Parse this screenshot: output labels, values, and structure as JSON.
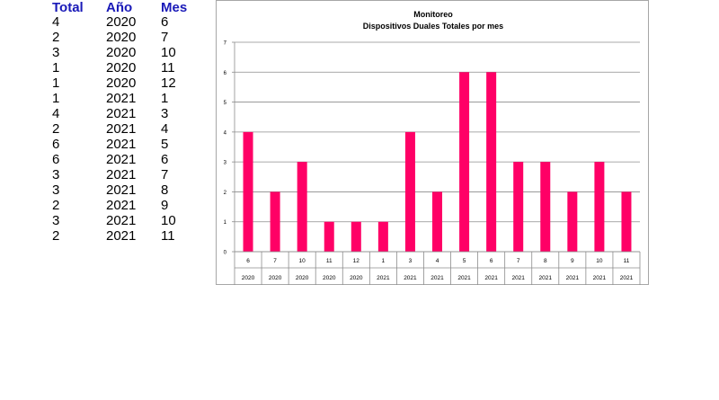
{
  "table": {
    "headers": [
      "Total",
      "Año",
      "Mes"
    ],
    "rows": [
      [
        "4",
        "2020",
        "6"
      ],
      [
        "2",
        "2020",
        "7"
      ],
      [
        "3",
        "2020",
        "10"
      ],
      [
        "1",
        "2020",
        "11"
      ],
      [
        "1",
        "2020",
        "12"
      ],
      [
        "1",
        "2021",
        "1"
      ],
      [
        "4",
        "2021",
        "3"
      ],
      [
        "2",
        "2021",
        "4"
      ],
      [
        "6",
        "2021",
        "5"
      ],
      [
        "6",
        "2021",
        "6"
      ],
      [
        "3",
        "2021",
        "7"
      ],
      [
        "3",
        "2021",
        "8"
      ],
      [
        "2",
        "2021",
        "9"
      ],
      [
        "3",
        "2021",
        "10"
      ],
      [
        "2",
        "2021",
        "11"
      ]
    ]
  },
  "chart_data": {
    "type": "bar",
    "title": "Monitoreo",
    "subtitle": "Dispositivos Duales Totales por mes",
    "categories_month": [
      "6",
      "7",
      "10",
      "11",
      "12",
      "1",
      "3",
      "4",
      "5",
      "6",
      "7",
      "8",
      "9",
      "10",
      "11"
    ],
    "categories_year": [
      "2020",
      "2020",
      "2020",
      "2020",
      "2020",
      "2021",
      "2021",
      "2021",
      "2021",
      "2021",
      "2021",
      "2021",
      "2021",
      "2021",
      "2021"
    ],
    "values": [
      4,
      2,
      3,
      1,
      1,
      1,
      4,
      2,
      6,
      6,
      3,
      3,
      2,
      3,
      2
    ],
    "ylim": [
      0,
      7
    ],
    "yticks": [
      "0",
      "1",
      "2",
      "3",
      "4",
      "5",
      "6",
      "7"
    ],
    "grid": true,
    "bar_color": "#ff0066"
  }
}
